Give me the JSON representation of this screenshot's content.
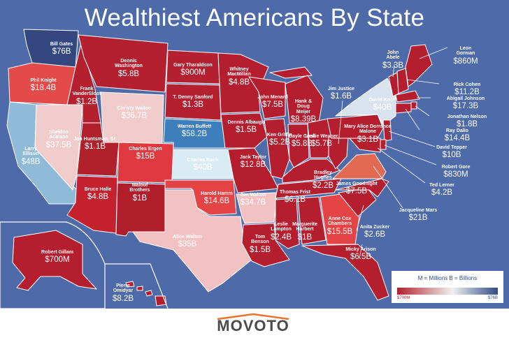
{
  "title": "Wealthiest Americans By State",
  "colors": {
    "ocean": "#4e6aa8",
    "low": "#b0202a",
    "high": "#2f4b86"
  },
  "legend": {
    "key": "M = Millions     B = Billions",
    "low": "$700M",
    "high": "$76B"
  },
  "logo": "MOVOTO",
  "states": [
    {
      "id": "wa",
      "name": "Bill Gates",
      "value": "$76B"
    },
    {
      "id": "or",
      "name": "Phil Knight",
      "value": "$18.4B"
    },
    {
      "id": "ca",
      "name": "Larry Ellison",
      "value": "$48B"
    },
    {
      "id": "nv",
      "name": "Sheldon Adelson",
      "value": "$37.5B"
    },
    {
      "id": "id",
      "name": "Frank VanderSloot",
      "value": "$1.2B"
    },
    {
      "id": "mt",
      "name": "Dennis Washington",
      "value": "$5.8B"
    },
    {
      "id": "wy",
      "name": "Christy Walton",
      "value": "$36.7B"
    },
    {
      "id": "ut",
      "name": "Jon Huntsman, Sr.",
      "value": "$1.1B"
    },
    {
      "id": "az",
      "name": "Bruce Halle",
      "value": "$4.8B"
    },
    {
      "id": "co",
      "name": "Charles Ergen",
      "value": "$15B"
    },
    {
      "id": "nm",
      "name": "Maloof Brothers",
      "value": "$1B"
    },
    {
      "id": "nd",
      "name": "Gary Tharaldson",
      "value": "$900M"
    },
    {
      "id": "sd",
      "name": "T. Denny Sanford",
      "value": "$1.3B"
    },
    {
      "id": "ne",
      "name": "Warren Buffett",
      "value": "$58.2B"
    },
    {
      "id": "ks",
      "name": "Charles Koch",
      "value": "$40B"
    },
    {
      "id": "ok",
      "name": "Harold Hamm",
      "value": "$14.6B"
    },
    {
      "id": "tx",
      "name": "Alice Walton",
      "value": "$35B"
    },
    {
      "id": "mn",
      "name": "Whitney MacMillan",
      "value": "$4.8B"
    },
    {
      "id": "ia",
      "name": "Dennis Albaugh",
      "value": "$1.5B"
    },
    {
      "id": "mo",
      "name": "Jack Taylor",
      "value": "$12.8B"
    },
    {
      "id": "ar",
      "name": "Jim Walton",
      "value": "$34.7B"
    },
    {
      "id": "la",
      "name": "Tom Benson",
      "value": "$1.5B"
    },
    {
      "id": "wi",
      "name": "John Menard",
      "value": "$7.5B"
    },
    {
      "id": "il",
      "name": "Ken Griffin",
      "value": "$5.2B"
    },
    {
      "id": "mi",
      "name": "Hank & Doug Meijer",
      "value": "$8.39B"
    },
    {
      "id": "in",
      "name": "Gayle Cook",
      "value": "$5.8B"
    },
    {
      "id": "oh",
      "name": "Leslie Wexner",
      "value": "$5.7B"
    },
    {
      "id": "ky",
      "name": "Bradley Hughes",
      "value": "$2.2B"
    },
    {
      "id": "tn",
      "name": "Thomas Frist",
      "value": "$6.1B"
    },
    {
      "id": "ms",
      "name": "Leslie Lampton",
      "value": "$2.4B"
    },
    {
      "id": "al",
      "name": "Marguerite Harbert",
      "value": "$1B"
    },
    {
      "id": "ga",
      "name": "Anne Cox Chambers",
      "value": "$15.5B"
    },
    {
      "id": "fl",
      "name": "Micky Arison",
      "value": "$6.5B"
    },
    {
      "id": "sc",
      "name": "Anita Zucker",
      "value": "$2.6B"
    },
    {
      "id": "nc",
      "name": "James Goodnight",
      "value": "$7.5B"
    },
    {
      "id": "va",
      "name": "Jacqueline Mars",
      "value": "$21B"
    },
    {
      "id": "wv",
      "name": "Jim Justice",
      "value": "$1.6B"
    },
    {
      "id": "pa",
      "name": "Mary Alice Dorrance Malone",
      "value": "$3.1B"
    },
    {
      "id": "ny",
      "name": "David Koch",
      "value": "$40B"
    },
    {
      "id": "vt",
      "name": "John Abele",
      "value": "$3.3B"
    },
    {
      "id": "me",
      "name": "Leon Gorman",
      "value": "$860M"
    },
    {
      "id": "nh",
      "name": "Rick Cohen",
      "value": "$11.2B"
    },
    {
      "id": "ma",
      "name": "Abigail Johnson",
      "value": "$17.3B"
    },
    {
      "id": "ri",
      "name": "Jonathan Nelson",
      "value": "$1.8B"
    },
    {
      "id": "ct",
      "name": "Ray Dalio",
      "value": "$14.4B"
    },
    {
      "id": "nj",
      "name": "David Tepper",
      "value": "$10B"
    },
    {
      "id": "de",
      "name": "Robert Gore",
      "value": "$830M"
    },
    {
      "id": "md",
      "name": "Ted Lerner",
      "value": "$4.2B"
    },
    {
      "id": "ak",
      "name": "Robert Gillam",
      "value": "$700M"
    },
    {
      "id": "hi",
      "name": "Pierre Omidyar",
      "value": "$8.2B"
    }
  ]
}
